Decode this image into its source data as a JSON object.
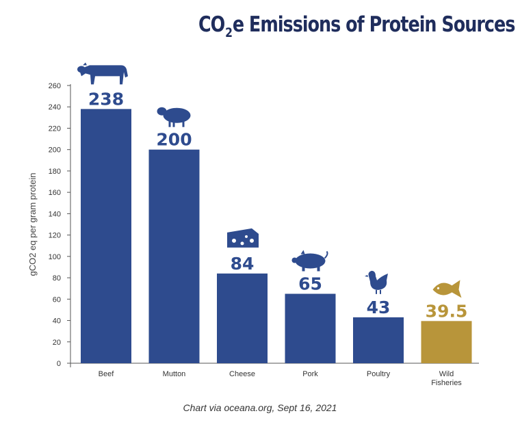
{
  "title_parts": {
    "pre": "CO",
    "sub": "2",
    "post": "e Emissions of Protein Sources"
  },
  "credit": "Chart via oceana.org, Sept 16, 2021",
  "colors": {
    "bar": "#2e4b8e",
    "highlight": "#b8953a",
    "title": "#1f2d5c"
  },
  "chart_data": {
    "type": "bar",
    "title": "CO2e Emissions of Protein Sources",
    "xlabel": "",
    "ylabel": "gCO2 eq per gram protein",
    "ylim": [
      0,
      260
    ],
    "yticks": [
      0,
      20,
      40,
      60,
      80,
      100,
      120,
      140,
      160,
      180,
      200,
      220,
      240,
      260
    ],
    "categories": [
      "Beef",
      "Mutton",
      "Cheese",
      "Pork",
      "Poultry",
      "Wild Fisheries"
    ],
    "values": [
      238,
      200,
      84,
      65,
      43,
      39.5
    ],
    "value_labels": [
      "238",
      "200",
      "84",
      "65",
      "43",
      "39.5"
    ],
    "icons": [
      "cow-icon",
      "sheep-icon",
      "cheese-icon",
      "pig-icon",
      "chicken-icon",
      "fish-icon"
    ],
    "highlight_index": 5
  }
}
